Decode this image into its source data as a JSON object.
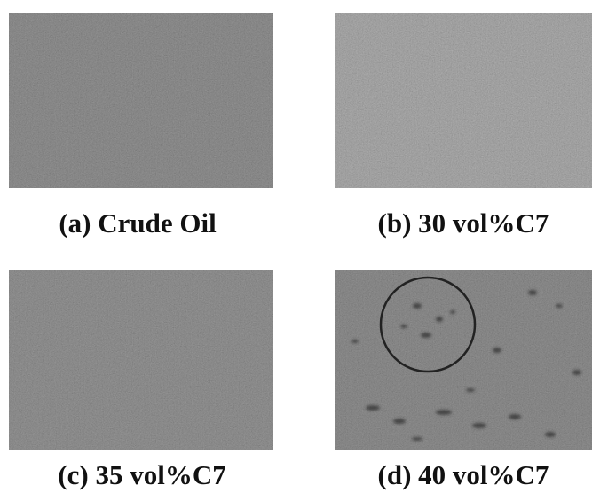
{
  "panels": [
    {
      "label": "(a) Crude Oil"
    },
    {
      "label": "(b) 30 vol%C7"
    },
    {
      "label": "(c) 35 vol%C7"
    },
    {
      "label": "(d) 40 vol%C7"
    }
  ]
}
